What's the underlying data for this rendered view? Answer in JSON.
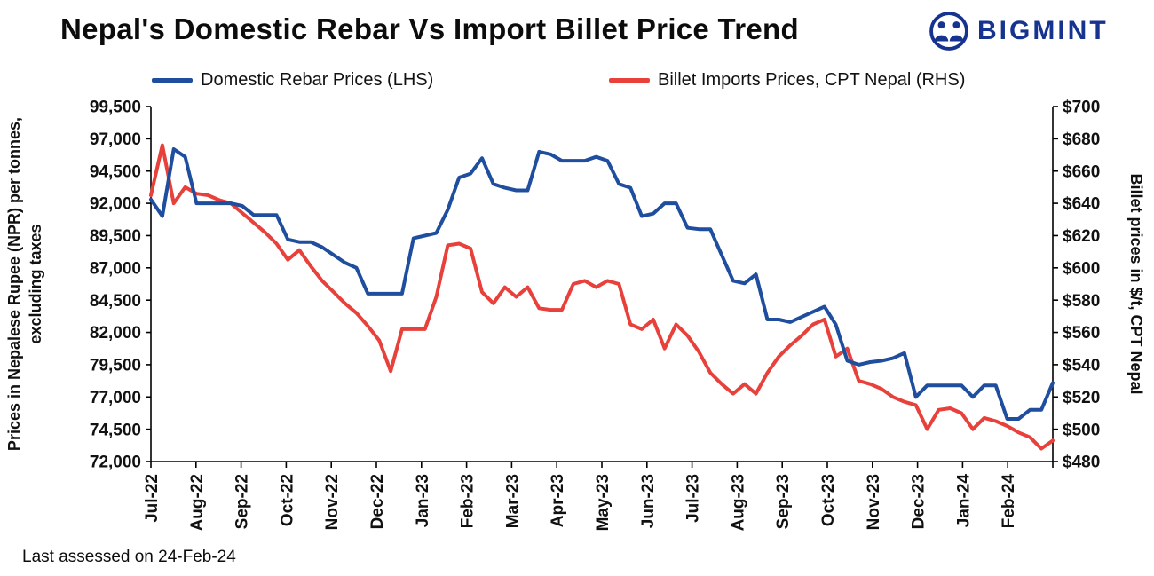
{
  "brand": {
    "name": "BIGMINT"
  },
  "footer": {
    "note": "Last assessed on 24-Feb-24"
  },
  "chart_data": {
    "type": "line",
    "title": "Nepal's Domestic Rebar Vs Import Billet Price Trend",
    "grid": false,
    "legend_position": "top",
    "x_tick_labels": [
      "Jul-22",
      "Aug-22",
      "Sep-22",
      "Oct-22",
      "Nov-22",
      "Dec-22",
      "Jan-23",
      "Feb-23",
      "Mar-23",
      "Apr-23",
      "May-23",
      "Jun-23",
      "Jul-23",
      "Aug-23",
      "Sep-23",
      "Oct-23",
      "Nov-23",
      "Dec-23",
      "Jan-24",
      "Feb-24"
    ],
    "left_axis": {
      "title_lines": [
        "Prices in Nepalese Rupee (NPR) per tonnes,",
        "excluding taxes"
      ],
      "min": 72000,
      "max": 99500,
      "step": 2500,
      "tick_labels": [
        "99,500",
        "97,000",
        "94,500",
        "92,000",
        "89,500",
        "87,000",
        "84,500",
        "82,000",
        "79,500",
        "77,000",
        "74,500",
        "72,000"
      ]
    },
    "right_axis": {
      "title": "Billet prices in $/t, CPT Nepal",
      "min": 480,
      "max": 700,
      "step": 20,
      "tick_labels": [
        "$700",
        "$680",
        "$660",
        "$640",
        "$620",
        "$600",
        "$580",
        "$560",
        "$540",
        "$520",
        "$500",
        "$480"
      ]
    },
    "series": [
      {
        "name": "Domestic Rebar Prices (LHS)",
        "axis": "left",
        "color": "#1f4e9f",
        "values": [
          92300,
          91000,
          96200,
          95600,
          92000,
          92000,
          92000,
          92000,
          91800,
          91100,
          91100,
          91100,
          89200,
          89000,
          89000,
          88600,
          88000,
          87400,
          87000,
          85000,
          85000,
          85000,
          85000,
          89300,
          89500,
          89700,
          91500,
          94000,
          94300,
          95500,
          93500,
          93200,
          93000,
          93000,
          96000,
          95800,
          95300,
          95300,
          95300,
          95600,
          95300,
          93500,
          93200,
          91000,
          91200,
          92000,
          92000,
          90100,
          90000,
          90000,
          88000,
          86000,
          85800,
          86500,
          83000,
          83000,
          82800,
          83200,
          83600,
          84000,
          82600,
          79800,
          79500,
          79700,
          79800,
          80000,
          80400,
          77000,
          77900,
          77900,
          77900,
          77900,
          77000,
          77900,
          77900,
          75300,
          75300,
          76000,
          76000,
          78100
        ]
      },
      {
        "name": "Billet Imports Prices, CPT Nepal (RHS)",
        "axis": "right",
        "color": "#e8403a",
        "values": [
          645,
          676,
          640,
          650,
          646,
          645,
          642,
          640,
          634,
          628,
          622,
          615,
          605,
          611,
          601,
          592,
          585,
          578,
          572,
          564,
          555,
          536,
          562,
          562,
          562,
          582,
          614,
          615,
          612,
          585,
          578,
          588,
          582,
          588,
          575,
          574,
          574,
          590,
          592,
          588,
          592,
          590,
          565,
          562,
          568,
          550,
          565,
          558,
          548,
          535,
          528,
          522,
          528,
          522,
          535,
          545,
          552,
          558,
          565,
          568,
          545,
          550,
          530,
          528,
          525,
          520,
          517,
          515,
          500,
          512,
          513,
          510,
          500,
          507,
          505,
          502,
          498,
          495,
          488,
          493
        ]
      }
    ]
  }
}
